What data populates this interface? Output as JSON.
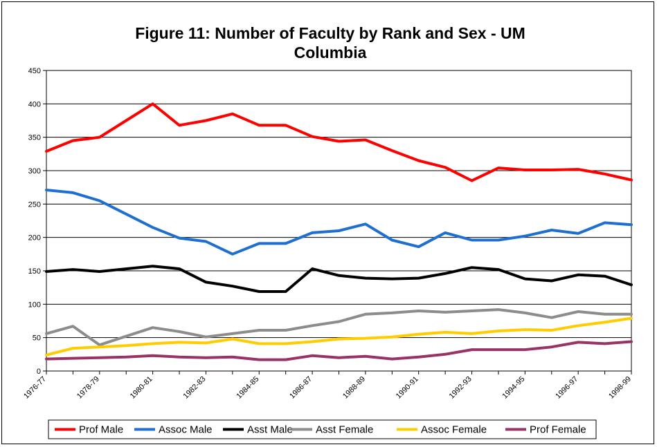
{
  "chart_data": {
    "type": "line",
    "title_line1": "Figure 11: Number of Faculty by Rank and Sex - UM",
    "title_line2": "Columbia",
    "xlabel": "",
    "ylabel": "",
    "ylim": [
      0,
      450
    ],
    "y_ticks": [
      "0",
      "50",
      "100",
      "150",
      "200",
      "250",
      "300",
      "350",
      "400",
      "450"
    ],
    "x": [
      "1976-77",
      "1977-78",
      "1978-79",
      "1979-80",
      "1980-81",
      "1981-82",
      "1982-83",
      "1983-84",
      "1984-85",
      "1985-86",
      "1986-87",
      "1987-88",
      "1988-89",
      "1989-90",
      "1990-91",
      "1991-92",
      "1992-93",
      "1993-94",
      "1994-95",
      "1995-96",
      "1996-97",
      "1997-98",
      "1998-99"
    ],
    "x_tick_labels": [
      "1976-77",
      "1978-79",
      "1980-81",
      "1982-83",
      "1984-85",
      "1986-87",
      "1988-89",
      "1990-91",
      "1992-93",
      "1994-95",
      "1996-97",
      "1998-99"
    ],
    "grid": "horizontal",
    "legend_position": "bottom",
    "series": [
      {
        "name": "Prof Male",
        "color": "#ff0000",
        "values": [
          329,
          345,
          350,
          375,
          400,
          368,
          375,
          385,
          368,
          368,
          351,
          344,
          346,
          330,
          315,
          305,
          285,
          304,
          301,
          301,
          302,
          295,
          286
        ]
      },
      {
        "name": "Assoc Male",
        "color": "#1f6fd0",
        "values": [
          271,
          267,
          255,
          235,
          215,
          199,
          194,
          175,
          191,
          191,
          207,
          210,
          220,
          196,
          186,
          207,
          196,
          196,
          202,
          211,
          206,
          222,
          219
        ]
      },
      {
        "name": "Asst Male",
        "color": "#000000",
        "values": [
          149,
          152,
          149,
          153,
          157,
          153,
          133,
          127,
          119,
          119,
          153,
          143,
          139,
          138,
          139,
          146,
          155,
          152,
          138,
          135,
          144,
          142,
          129
        ]
      },
      {
        "name": "Asst Female",
        "color": "#8c8c8c",
        "values": [
          56,
          67,
          39,
          52,
          65,
          59,
          51,
          56,
          61,
          61,
          68,
          74,
          85,
          87,
          90,
          88,
          90,
          92,
          87,
          80,
          89,
          85,
          85
        ]
      },
      {
        "name": "Assoc Female",
        "color": "#ffcc00",
        "values": [
          24,
          34,
          36,
          38,
          41,
          43,
          42,
          48,
          41,
          41,
          44,
          48,
          49,
          51,
          55,
          58,
          56,
          60,
          62,
          61,
          68,
          73,
          79
        ]
      },
      {
        "name": "Prof Female",
        "color": "#993366",
        "values": [
          18,
          19,
          20,
          21,
          23,
          21,
          20,
          21,
          17,
          17,
          23,
          20,
          22,
          18,
          21,
          25,
          32,
          32,
          32,
          36,
          43,
          41,
          44
        ]
      }
    ]
  }
}
